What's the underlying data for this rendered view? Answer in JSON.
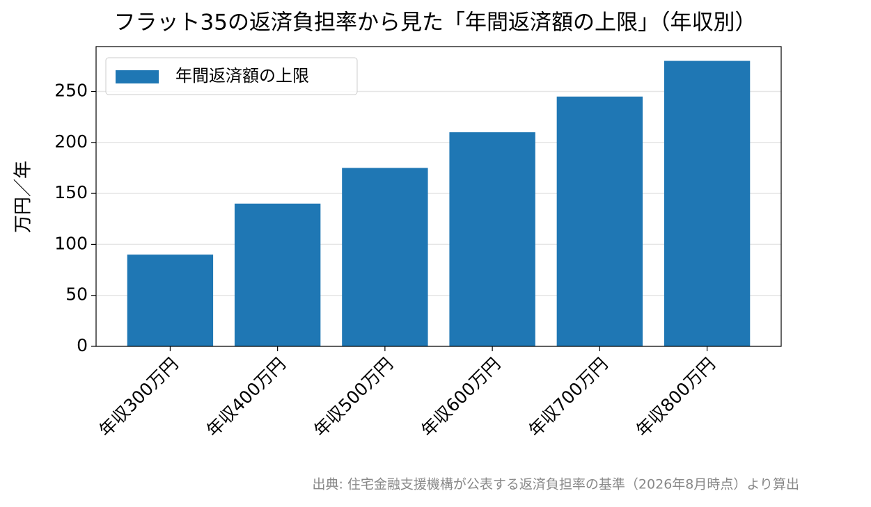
{
  "chart_data": {
    "type": "bar",
    "title": "フラット35の返済負担率から見た「年間返済額の上限」（年収別）",
    "y_label": "万円／年",
    "categories": [
      "年収300万円",
      "年収400万円",
      "年収500万円",
      "年収600万円",
      "年収700万円",
      "年収800万円"
    ],
    "series": [
      {
        "name": "年間返済額の上限",
        "color": "#1f77b4",
        "values": [
          90,
          140,
          175,
          210,
          245,
          280
        ]
      }
    ],
    "ylim": [
      0,
      294
    ],
    "yticks": [
      0,
      50,
      100,
      150,
      200,
      250
    ],
    "grid": true,
    "legend": "upper-left",
    "source": "出典: 住宅金融支援機構が公表する返済負担率の基準（2026年8月時点）より算出"
  }
}
